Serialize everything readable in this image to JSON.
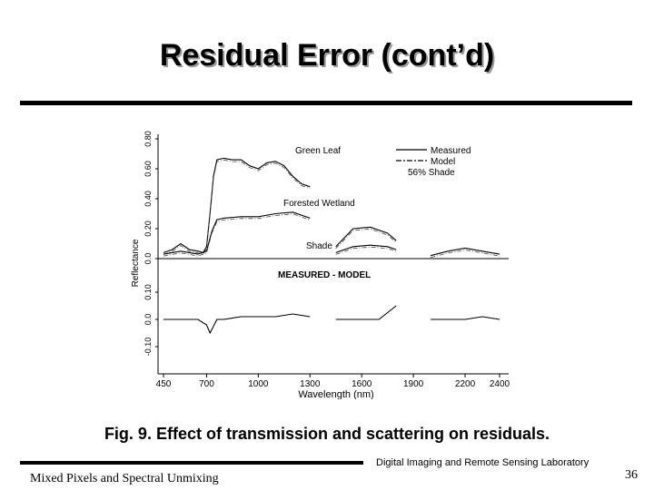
{
  "slide": {
    "title": "Residual Error (cont’d)",
    "caption": "Fig. 9. Effect of transmission and scattering on residuals.",
    "footer_left": "Mixed Pixels and Spectral Unmixing",
    "footer_lab": "Digital Imaging and Remote Sensing Laboratory",
    "page_number": "36"
  },
  "chart_data": {
    "type": "line",
    "xlabel": "Wavelength (nm)",
    "ylabel": "Reflectance",
    "x_ticks": [
      450,
      700,
      1000,
      1300,
      1600,
      1900,
      2200,
      2400
    ],
    "y_ticks_top": [
      "0.0",
      "0.20",
      "0.40",
      "0.60",
      "0.80"
    ],
    "y_ticks_bottom": [
      "-0.10",
      "0.0",
      "0.10"
    ],
    "xlim": [
      450,
      2400
    ],
    "legend": [
      "Measured",
      "Model",
      "56% Shade"
    ],
    "legend_position": "top-right",
    "lower_panel_label": "MEASURED - MODEL",
    "curve_labels": [
      "Green Leaf",
      "Forested Wetland",
      "Shade"
    ],
    "gaps_nm": [
      [
        1340,
        1450
      ],
      [
        1800,
        2000
      ]
    ],
    "series": [
      {
        "name": "Green Leaf",
        "x": [
          450,
          500,
          550,
          600,
          650,
          680,
          700,
          720,
          740,
          760,
          800,
          850,
          900,
          950,
          1000,
          1050,
          1100,
          1150,
          1200,
          1250,
          1300
        ],
        "y": [
          0.04,
          0.06,
          0.1,
          0.06,
          0.05,
          0.04,
          0.08,
          0.3,
          0.55,
          0.66,
          0.67,
          0.66,
          0.66,
          0.62,
          0.6,
          0.64,
          0.65,
          0.62,
          0.55,
          0.5,
          0.48
        ]
      },
      {
        "name": "Forested Wetland",
        "x": [
          450,
          550,
          650,
          700,
          730,
          760,
          800,
          900,
          1000,
          1100,
          1200,
          1300,
          1450,
          1550,
          1650,
          1750,
          1800
        ],
        "y": [
          0.03,
          0.05,
          0.03,
          0.05,
          0.18,
          0.26,
          0.27,
          0.28,
          0.28,
          0.3,
          0.31,
          0.27,
          0.08,
          0.2,
          0.21,
          0.17,
          0.12
        ]
      },
      {
        "name": "Shade",
        "x": [
          1450,
          1550,
          1650,
          1750,
          1800,
          2000,
          2100,
          2200,
          2300,
          2400
        ],
        "y": [
          0.04,
          0.08,
          0.09,
          0.08,
          0.06,
          0.02,
          0.05,
          0.07,
          0.05,
          0.03
        ]
      },
      {
        "name": "MEASURED - MODEL",
        "x": [
          450,
          550,
          650,
          700,
          720,
          760,
          800,
          900,
          1000,
          1100,
          1200,
          1300,
          1450,
          1600,
          1700,
          1800,
          2000,
          2100,
          2200,
          2300,
          2400
        ],
        "y": [
          0.0,
          0.0,
          0.0,
          -0.02,
          -0.05,
          0.0,
          0.0,
          0.01,
          0.01,
          0.01,
          0.02,
          0.01,
          0.0,
          0.0,
          0.0,
          0.05,
          0.0,
          0.0,
          0.0,
          0.01,
          0.0
        ]
      }
    ]
  }
}
